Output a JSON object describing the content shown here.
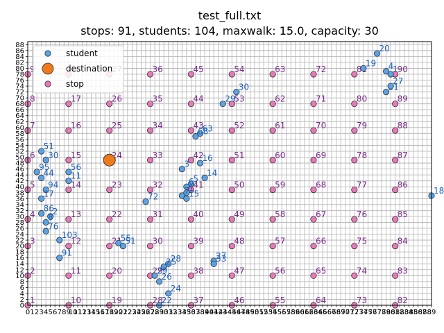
{
  "chart_data": {
    "type": "scatter",
    "title": "test_full.txt",
    "subtitle": "stops: 91, students: 104, maxwalk: 15.0, capacity: 30",
    "xlim": [
      0,
      89
    ],
    "ylim": [
      0,
      89
    ],
    "grid": true,
    "legend_placement": "top-left",
    "x_ticks": [
      0,
      1,
      2,
      3,
      4,
      5,
      6,
      7,
      8,
      9,
      10,
      11,
      12,
      13,
      14,
      15,
      16,
      17,
      18,
      19,
      20,
      21,
      22,
      23,
      24,
      25,
      26,
      27,
      28,
      29,
      30,
      31,
      32,
      33,
      34,
      35,
      36,
      37,
      38,
      39,
      40,
      41,
      42,
      43,
      44,
      45,
      46,
      47,
      48,
      49,
      50,
      51,
      52,
      53,
      54,
      55,
      56,
      57,
      58,
      59,
      60,
      61,
      62,
      63,
      64,
      65,
      66,
      67,
      68,
      69,
      70,
      71,
      72,
      73,
      74,
      75,
      76,
      77,
      78,
      79,
      80,
      81,
      82,
      83,
      84,
      85,
      86,
      87,
      88,
      89
    ],
    "y_ticks": [
      0,
      2,
      4,
      6,
      8,
      10,
      12,
      14,
      16,
      18,
      20,
      22,
      24,
      26,
      28,
      30,
      32,
      34,
      36,
      38,
      40,
      42,
      44,
      46,
      48,
      50,
      52,
      54,
      56,
      58,
      60,
      62,
      64,
      66,
      68,
      70,
      72,
      74,
      76,
      78,
      80,
      82,
      84,
      86,
      88
    ],
    "colors": {
      "student": "#5aa3e6",
      "destination": "#f07a1a",
      "stop": "#e879b8",
      "edge": "#333333",
      "stop_text": "#7b2d8b",
      "student_text": "#1f5fbf"
    },
    "legend": [
      {
        "name": "student",
        "marker": "student"
      },
      {
        "name": "destination",
        "marker": "destination"
      },
      {
        "name": "stop",
        "marker": "stop"
      }
    ],
    "destination": {
      "x": 18,
      "y": 49
    },
    "stops": [
      {
        "label": "1",
        "x": 0,
        "y": 0
      },
      {
        "label": "2",
        "x": 0,
        "y": 10
      },
      {
        "label": "3",
        "x": 0,
        "y": 20
      },
      {
        "label": "4",
        "x": 0,
        "y": 29
      },
      {
        "label": "5",
        "x": 0,
        "y": 39
      },
      {
        "label": "6",
        "x": 0,
        "y": 49
      },
      {
        "label": "7",
        "x": 0,
        "y": 59
      },
      {
        "label": "8",
        "x": 0,
        "y": 68
      },
      {
        "label": "9",
        "x": 0,
        "y": 78
      },
      {
        "label": "10",
        "x": 9,
        "y": 0
      },
      {
        "label": "11",
        "x": 9,
        "y": 10
      },
      {
        "label": "12",
        "x": 9,
        "y": 20
      },
      {
        "label": "13",
        "x": 9,
        "y": 29
      },
      {
        "label": "14",
        "x": 9,
        "y": 39
      },
      {
        "label": "15",
        "x": 9,
        "y": 49
      },
      {
        "label": "16",
        "x": 9,
        "y": 59
      },
      {
        "label": "17",
        "x": 9,
        "y": 68
      },
      {
        "label": "18",
        "x": 9,
        "y": 78
      },
      {
        "label": "19",
        "x": 18,
        "y": 0
      },
      {
        "label": "20",
        "x": 18,
        "y": 10
      },
      {
        "label": "21",
        "x": 18,
        "y": 20
      },
      {
        "label": "22",
        "x": 18,
        "y": 29
      },
      {
        "label": "23",
        "x": 18,
        "y": 39
      },
      {
        "label": "24",
        "x": 18,
        "y": 49
      },
      {
        "label": "25",
        "x": 18,
        "y": 59
      },
      {
        "label": "26",
        "x": 18,
        "y": 68
      },
      {
        "label": "27",
        "x": 18,
        "y": 78
      },
      {
        "label": "28",
        "x": 27,
        "y": 0
      },
      {
        "label": "29",
        "x": 27,
        "y": 10
      },
      {
        "label": "30",
        "x": 27,
        "y": 20
      },
      {
        "label": "31",
        "x": 27,
        "y": 29
      },
      {
        "label": "32",
        "x": 27,
        "y": 39
      },
      {
        "label": "33",
        "x": 27,
        "y": 49
      },
      {
        "label": "34",
        "x": 27,
        "y": 59
      },
      {
        "label": "35",
        "x": 27,
        "y": 68
      },
      {
        "label": "36",
        "x": 27,
        "y": 78
      },
      {
        "label": "37",
        "x": 36,
        "y": 0
      },
      {
        "label": "38",
        "x": 36,
        "y": 10
      },
      {
        "label": "39",
        "x": 36,
        "y": 20
      },
      {
        "label": "40",
        "x": 36,
        "y": 29
      },
      {
        "label": "41",
        "x": 36,
        "y": 39
      },
      {
        "label": "42",
        "x": 36,
        "y": 49
      },
      {
        "label": "43",
        "x": 36,
        "y": 59
      },
      {
        "label": "44",
        "x": 36,
        "y": 68
      },
      {
        "label": "45",
        "x": 36,
        "y": 78
      },
      {
        "label": "46",
        "x": 45,
        "y": 0
      },
      {
        "label": "47",
        "x": 45,
        "y": 10
      },
      {
        "label": "48",
        "x": 45,
        "y": 20
      },
      {
        "label": "49",
        "x": 45,
        "y": 29
      },
      {
        "label": "50",
        "x": 45,
        "y": 39
      },
      {
        "label": "51",
        "x": 45,
        "y": 49
      },
      {
        "label": "52",
        "x": 45,
        "y": 59
      },
      {
        "label": "53",
        "x": 45,
        "y": 68
      },
      {
        "label": "54",
        "x": 45,
        "y": 78
      },
      {
        "label": "55",
        "x": 54,
        "y": 0
      },
      {
        "label": "56",
        "x": 54,
        "y": 10
      },
      {
        "label": "57",
        "x": 54,
        "y": 20
      },
      {
        "label": "58",
        "x": 54,
        "y": 29
      },
      {
        "label": "59",
        "x": 54,
        "y": 39
      },
      {
        "label": "60",
        "x": 54,
        "y": 49
      },
      {
        "label": "61",
        "x": 54,
        "y": 59
      },
      {
        "label": "62",
        "x": 54,
        "y": 68
      },
      {
        "label": "63",
        "x": 54,
        "y": 78
      },
      {
        "label": "64",
        "x": 63,
        "y": 0
      },
      {
        "label": "65",
        "x": 63,
        "y": 10
      },
      {
        "label": "66",
        "x": 63,
        "y": 20
      },
      {
        "label": "67",
        "x": 63,
        "y": 29
      },
      {
        "label": "68",
        "x": 63,
        "y": 39
      },
      {
        "label": "69",
        "x": 63,
        "y": 49
      },
      {
        "label": "70",
        "x": 63,
        "y": 59
      },
      {
        "label": "71",
        "x": 63,
        "y": 68
      },
      {
        "label": "72",
        "x": 63,
        "y": 78
      },
      {
        "label": "73",
        "x": 72,
        "y": 0
      },
      {
        "label": "74",
        "x": 72,
        "y": 10
      },
      {
        "label": "75",
        "x": 72,
        "y": 20
      },
      {
        "label": "76",
        "x": 72,
        "y": 29
      },
      {
        "label": "77",
        "x": 72,
        "y": 39
      },
      {
        "label": "78",
        "x": 72,
        "y": 49
      },
      {
        "label": "79",
        "x": 72,
        "y": 59
      },
      {
        "label": "80",
        "x": 72,
        "y": 68
      },
      {
        "label": "81",
        "x": 72,
        "y": 78
      },
      {
        "label": "82",
        "x": 81,
        "y": 0
      },
      {
        "label": "83",
        "x": 81,
        "y": 10
      },
      {
        "label": "84",
        "x": 81,
        "y": 20
      },
      {
        "label": "85",
        "x": 81,
        "y": 29
      },
      {
        "label": "86",
        "x": 81,
        "y": 39
      },
      {
        "label": "87",
        "x": 81,
        "y": 49
      },
      {
        "label": "88",
        "x": 81,
        "y": 59
      },
      {
        "label": "89",
        "x": 81,
        "y": 68
      },
      {
        "label": "90",
        "x": 81,
        "y": 78
      }
    ],
    "students": [
      {
        "label": "1",
        "x": 80,
        "y": 78
      },
      {
        "label": "4",
        "x": 79,
        "y": 79
      },
      {
        "label": "20",
        "x": 77,
        "y": 85
      },
      {
        "label": "19",
        "x": 74,
        "y": 80
      },
      {
        "label": "21",
        "x": 79,
        "y": 72
      },
      {
        "label": "27",
        "x": 80,
        "y": 74
      },
      {
        "label": "30",
        "x": 46,
        "y": 72
      },
      {
        "label": "29",
        "x": 43,
        "y": 68
      },
      {
        "label": "18",
        "x": 89,
        "y": 37
      },
      {
        "label": "24",
        "x": 31,
        "y": 4
      },
      {
        "label": "22",
        "x": 29,
        "y": 0
      },
      {
        "label": "28",
        "x": 31,
        "y": 14
      },
      {
        "label": "25",
        "x": 30,
        "y": 13
      },
      {
        "label": "29",
        "x": 28,
        "y": 10
      },
      {
        "label": "26",
        "x": 29,
        "y": 8
      },
      {
        "label": "27",
        "x": 41,
        "y": 15
      },
      {
        "label": "33",
        "x": 41,
        "y": 14
      },
      {
        "label": "55",
        "x": 20,
        "y": 21
      },
      {
        "label": "51",
        "x": 21,
        "y": 20
      },
      {
        "label": "72",
        "x": 26,
        "y": 35
      },
      {
        "label": "63",
        "x": 38,
        "y": 58
      },
      {
        "label": "68",
        "x": 37,
        "y": 57
      },
      {
        "label": "16",
        "x": 38,
        "y": 48
      },
      {
        "label": "14",
        "x": 39,
        "y": 43
      },
      {
        "label": "5",
        "x": 36,
        "y": 41
      },
      {
        "label": "6",
        "x": 35,
        "y": 40
      },
      {
        "label": "1",
        "x": 35,
        "y": 38
      },
      {
        "label": "7",
        "x": 34,
        "y": 37
      },
      {
        "label": "15",
        "x": 35,
        "y": 36
      },
      {
        "label": "3",
        "x": 34,
        "y": 46
      },
      {
        "label": "56",
        "x": 9,
        "y": 45
      },
      {
        "label": "11",
        "x": 9,
        "y": 42
      },
      {
        "label": "51",
        "x": 3,
        "y": 52
      },
      {
        "label": "30",
        "x": 4,
        "y": 49
      },
      {
        "label": "91",
        "x": 7,
        "y": 16
      },
      {
        "label": "103",
        "x": 7,
        "y": 22
      },
      {
        "label": "76",
        "x": 4,
        "y": 25
      },
      {
        "label": "94",
        "x": 4,
        "y": 39
      },
      {
        "label": "86",
        "x": 3,
        "y": 31
      },
      {
        "label": "17",
        "x": 3,
        "y": 36
      },
      {
        "label": "44",
        "x": 3,
        "y": 43
      },
      {
        "label": "95",
        "x": 2,
        "y": 45
      },
      {
        "label": "2",
        "x": 5,
        "y": 30
      },
      {
        "label": "8",
        "x": 4,
        "y": 28
      }
    ]
  }
}
